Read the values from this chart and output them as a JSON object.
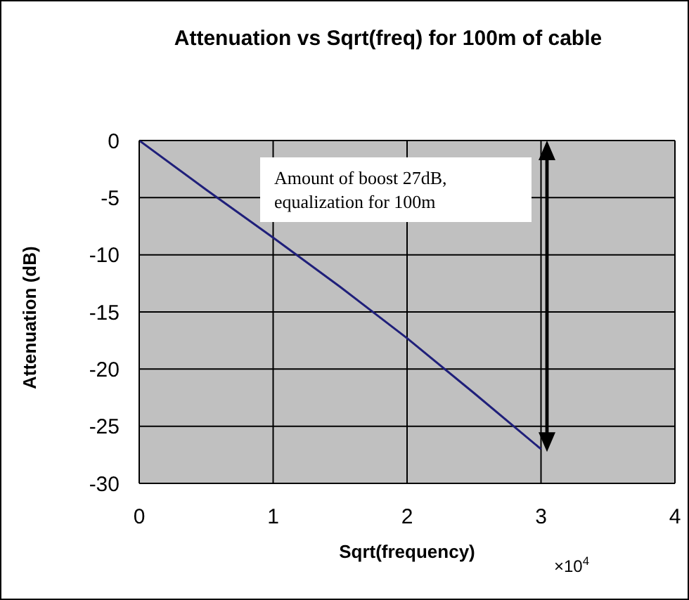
{
  "chart_data": {
    "type": "line",
    "title": "Attenuation vs Sqrt(freq) for 100m of cable",
    "xlabel": "Sqrt(frequency)",
    "ylabel": "Attenuation (dB)",
    "x": [
      0,
      0.5,
      1,
      1.5,
      2,
      2.5,
      3
    ],
    "series": [
      {
        "color": "#1f1f7a",
        "values": [
          0,
          -4.3,
          -8.5,
          -12.8,
          -17.3,
          -22.1,
          -27.0
        ]
      }
    ],
    "xlim": [
      0,
      4
    ],
    "xticks": [
      0,
      1,
      2,
      3,
      4
    ],
    "ylim": [
      -30,
      0
    ],
    "yticks": [
      -30,
      -25,
      -20,
      -15,
      -10,
      -5,
      0
    ],
    "grid": true,
    "legend": false,
    "marker": "none",
    "line_style": "solid",
    "annotations": [
      "Amount of boost 27dB, equalization for 100m",
      "×10$^{4}$"
    ]
  }
}
